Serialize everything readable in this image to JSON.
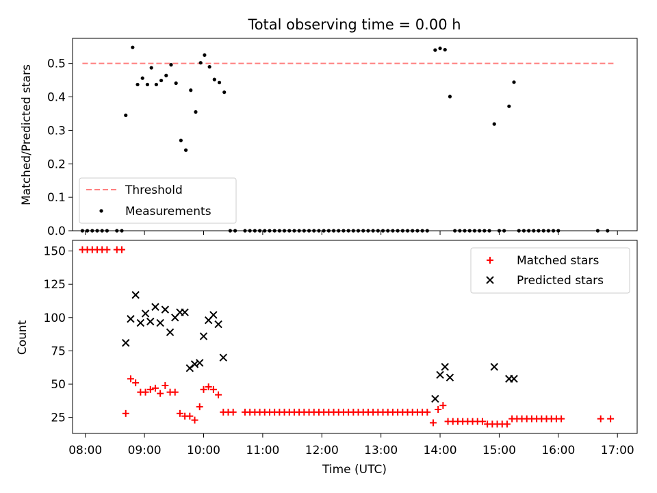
{
  "chart_data": {
    "title": "Total observing time = 0.00 h",
    "xlabel": "Time (UTC)",
    "x_ticks": [
      "08:00",
      "09:00",
      "10:00",
      "11:00",
      "12:00",
      "13:00",
      "14:00",
      "15:00",
      "16:00",
      "17:00"
    ],
    "xlim": [
      "07:47",
      "17:20"
    ],
    "panels": [
      {
        "type": "scatter",
        "ylabel": "Matched/Predicted stars",
        "ylim": [
          0,
          0.575
        ],
        "y_ticks": [
          "0.0",
          "0.1",
          "0.2",
          "0.3",
          "0.4",
          "0.5"
        ],
        "y_tick_values": [
          0,
          0.1,
          0.2,
          0.3,
          0.4,
          0.5
        ],
        "legend_position": "lower-left",
        "series": [
          {
            "name": "Threshold",
            "kind": "dashed-line",
            "color": "#ff7f7f",
            "points": [
              [
                "07:57",
                0.5
              ],
              [
                "16:58",
                0.5
              ]
            ]
          },
          {
            "name": "Measurements",
            "kind": "dot",
            "color": "#000000",
            "points": [
              [
                "07:57",
                0
              ],
              [
                "08:02",
                0
              ],
              [
                "08:07",
                0
              ],
              [
                "08:12",
                0
              ],
              [
                "08:17",
                0
              ],
              [
                "08:22",
                0
              ],
              [
                "08:32",
                0
              ],
              [
                "08:37",
                0
              ],
              [
                "08:41",
                0.345
              ],
              [
                "08:48",
                0.548
              ],
              [
                "08:53",
                0.437
              ],
              [
                "08:58",
                0.456
              ],
              [
                "09:03",
                0.437
              ],
              [
                "09:07",
                0.487
              ],
              [
                "09:12",
                0.437
              ],
              [
                "09:17",
                0.449
              ],
              [
                "09:22",
                0.464
              ],
              [
                "09:27",
                0.496
              ],
              [
                "09:32",
                0.441
              ],
              [
                "09:37",
                0.27
              ],
              [
                "09:42",
                0.241
              ],
              [
                "09:47",
                0.42
              ],
              [
                "09:52",
                0.355
              ],
              [
                "09:57",
                0.502
              ],
              [
                "10:01",
                0.525
              ],
              [
                "10:06",
                0.49
              ],
              [
                "10:11",
                0.452
              ],
              [
                "10:16",
                0.443
              ],
              [
                "10:21",
                0.414
              ],
              [
                "10:27",
                0
              ],
              [
                "10:32",
                0
              ],
              [
                "10:42",
                0
              ],
              [
                "10:47",
                0
              ],
              [
                "10:52",
                0
              ],
              [
                "10:57",
                0
              ],
              [
                "11:02",
                0
              ],
              [
                "11:07",
                0
              ],
              [
                "11:12",
                0
              ],
              [
                "11:17",
                0
              ],
              [
                "11:22",
                0
              ],
              [
                "11:27",
                0
              ],
              [
                "11:32",
                0
              ],
              [
                "11:37",
                0
              ],
              [
                "11:42",
                0
              ],
              [
                "11:47",
                0
              ],
              [
                "11:52",
                0
              ],
              [
                "11:57",
                0
              ],
              [
                "12:02",
                0
              ],
              [
                "12:07",
                0
              ],
              [
                "12:12",
                0
              ],
              [
                "12:17",
                0
              ],
              [
                "12:22",
                0
              ],
              [
                "12:27",
                0
              ],
              [
                "12:32",
                0
              ],
              [
                "12:37",
                0
              ],
              [
                "12:42",
                0
              ],
              [
                "12:47",
                0
              ],
              [
                "12:52",
                0
              ],
              [
                "12:57",
                0
              ],
              [
                "13:02",
                0
              ],
              [
                "13:07",
                0
              ],
              [
                "13:12",
                0
              ],
              [
                "13:17",
                0
              ],
              [
                "13:22",
                0
              ],
              [
                "13:27",
                0
              ],
              [
                "13:32",
                0
              ],
              [
                "13:37",
                0
              ],
              [
                "13:42",
                0
              ],
              [
                "13:47",
                0
              ],
              [
                "13:55",
                0.54
              ],
              [
                "14:00",
                0.545
              ],
              [
                "14:05",
                0.541
              ],
              [
                "14:10",
                0.401
              ],
              [
                "14:15",
                0
              ],
              [
                "14:20",
                0
              ],
              [
                "14:25",
                0
              ],
              [
                "14:30",
                0
              ],
              [
                "14:35",
                0
              ],
              [
                "14:40",
                0
              ],
              [
                "14:45",
                0
              ],
              [
                "14:50",
                0
              ],
              [
                "14:55",
                0.319
              ],
              [
                "15:00",
                0
              ],
              [
                "15:05",
                0
              ],
              [
                "15:10",
                0.372
              ],
              [
                "15:15",
                0.444
              ],
              [
                "15:20",
                0
              ],
              [
                "15:25",
                0
              ],
              [
                "15:30",
                0
              ],
              [
                "15:35",
                0
              ],
              [
                "15:40",
                0
              ],
              [
                "15:45",
                0
              ],
              [
                "15:50",
                0
              ],
              [
                "15:55",
                0
              ],
              [
                "16:00",
                0
              ],
              [
                "16:40",
                0
              ],
              [
                "16:50",
                0
              ]
            ]
          }
        ]
      },
      {
        "type": "scatter",
        "ylabel": "Count",
        "ylim": [
          13,
          158
        ],
        "y_ticks": [
          "25",
          "50",
          "75",
          "100",
          "125",
          "150"
        ],
        "y_tick_values": [
          25,
          50,
          75,
          100,
          125,
          150
        ],
        "legend_position": "upper-right",
        "series": [
          {
            "name": "Matched stars",
            "kind": "plus",
            "color": "#ff0000",
            "points": [
              [
                "07:57",
                151
              ],
              [
                "08:02",
                151
              ],
              [
                "08:07",
                151
              ],
              [
                "08:12",
                151
              ],
              [
                "08:17",
                151
              ],
              [
                "08:22",
                151
              ],
              [
                "08:32",
                151
              ],
              [
                "08:37",
                151
              ],
              [
                "08:41",
                28
              ],
              [
                "08:46",
                54
              ],
              [
                "08:51",
                51
              ],
              [
                "08:56",
                44
              ],
              [
                "09:01",
                44
              ],
              [
                "09:06",
                46
              ],
              [
                "09:11",
                47
              ],
              [
                "09:16",
                43
              ],
              [
                "09:21",
                49
              ],
              [
                "09:26",
                44
              ],
              [
                "09:31",
                44
              ],
              [
                "09:36",
                28
              ],
              [
                "09:41",
                26
              ],
              [
                "09:46",
                26
              ],
              [
                "09:51",
                23
              ],
              [
                "09:56",
                33
              ],
              [
                "10:00",
                46
              ],
              [
                "10:05",
                48
              ],
              [
                "10:10",
                46
              ],
              [
                "10:15",
                42
              ],
              [
                "10:20",
                29
              ],
              [
                "10:25",
                29
              ],
              [
                "10:30",
                29
              ],
              [
                "10:42",
                29
              ],
              [
                "10:47",
                29
              ],
              [
                "10:52",
                29
              ],
              [
                "10:57",
                29
              ],
              [
                "11:02",
                29
              ],
              [
                "11:07",
                29
              ],
              [
                "11:12",
                29
              ],
              [
                "11:17",
                29
              ],
              [
                "11:22",
                29
              ],
              [
                "11:27",
                29
              ],
              [
                "11:32",
                29
              ],
              [
                "11:37",
                29
              ],
              [
                "11:42",
                29
              ],
              [
                "11:47",
                29
              ],
              [
                "11:52",
                29
              ],
              [
                "11:57",
                29
              ],
              [
                "12:02",
                29
              ],
              [
                "12:07",
                29
              ],
              [
                "12:12",
                29
              ],
              [
                "12:17",
                29
              ],
              [
                "12:22",
                29
              ],
              [
                "12:27",
                29
              ],
              [
                "12:32",
                29
              ],
              [
                "12:37",
                29
              ],
              [
                "12:42",
                29
              ],
              [
                "12:47",
                29
              ],
              [
                "12:52",
                29
              ],
              [
                "12:57",
                29
              ],
              [
                "13:02",
                29
              ],
              [
                "13:07",
                29
              ],
              [
                "13:12",
                29
              ],
              [
                "13:17",
                29
              ],
              [
                "13:22",
                29
              ],
              [
                "13:27",
                29
              ],
              [
                "13:32",
                29
              ],
              [
                "13:37",
                29
              ],
              [
                "13:42",
                29
              ],
              [
                "13:47",
                29
              ],
              [
                "13:53",
                21
              ],
              [
                "13:58",
                31
              ],
              [
                "14:03",
                34
              ],
              [
                "14:08",
                22
              ],
              [
                "14:13",
                22
              ],
              [
                "14:18",
                22
              ],
              [
                "14:23",
                22
              ],
              [
                "14:28",
                22
              ],
              [
                "14:33",
                22
              ],
              [
                "14:38",
                22
              ],
              [
                "14:43",
                22
              ],
              [
                "14:48",
                20
              ],
              [
                "14:53",
                20
              ],
              [
                "14:58",
                20
              ],
              [
                "15:03",
                20
              ],
              [
                "15:08",
                20
              ],
              [
                "15:13",
                24
              ],
              [
                "15:18",
                24
              ],
              [
                "15:23",
                24
              ],
              [
                "15:28",
                24
              ],
              [
                "15:33",
                24
              ],
              [
                "15:38",
                24
              ],
              [
                "15:43",
                24
              ],
              [
                "15:48",
                24
              ],
              [
                "15:53",
                24
              ],
              [
                "15:58",
                24
              ],
              [
                "16:03",
                24
              ],
              [
                "16:43",
                24
              ],
              [
                "16:53",
                24
              ]
            ]
          },
          {
            "name": "Predicted stars",
            "kind": "cross",
            "color": "#000000",
            "points": [
              [
                "08:41",
                81
              ],
              [
                "08:46",
                99
              ],
              [
                "08:51",
                117
              ],
              [
                "08:56",
                96
              ],
              [
                "09:01",
                103
              ],
              [
                "09:06",
                97
              ],
              [
                "09:11",
                108
              ],
              [
                "09:16",
                96
              ],
              [
                "09:21",
                106
              ],
              [
                "09:26",
                89
              ],
              [
                "09:31",
                100
              ],
              [
                "09:36",
                104
              ],
              [
                "09:41",
                104
              ],
              [
                "09:46",
                62
              ],
              [
                "09:51",
                65
              ],
              [
                "09:56",
                66
              ],
              [
                "10:00",
                86
              ],
              [
                "10:05",
                98
              ],
              [
                "10:10",
                102
              ],
              [
                "10:15",
                95
              ],
              [
                "10:20",
                70
              ],
              [
                "13:55",
                39
              ],
              [
                "14:00",
                57
              ],
              [
                "14:05",
                63
              ],
              [
                "14:10",
                55
              ],
              [
                "14:55",
                63
              ],
              [
                "15:10",
                54
              ],
              [
                "15:15",
                54
              ]
            ]
          }
        ]
      }
    ]
  }
}
